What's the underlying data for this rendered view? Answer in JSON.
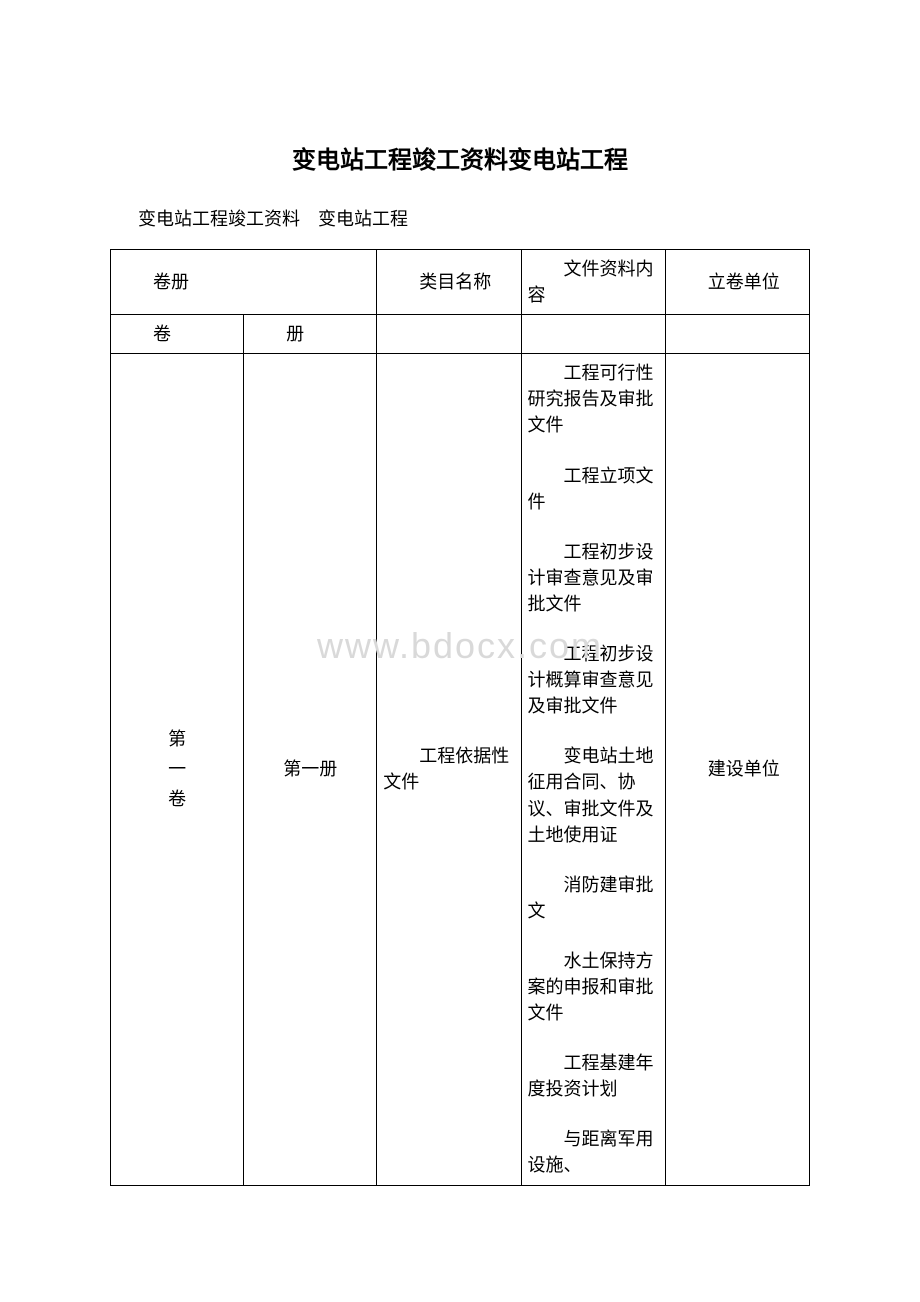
{
  "title": "变电站工程竣工资料变电站工程",
  "subtitle": "变电站工程竣工资料　变电站工程",
  "watermark": "www.bdocx.com",
  "headers": {
    "volume_series": "卷册",
    "category": "类目名称",
    "content": "文件资料内容",
    "unit": "立卷单位",
    "volume": "卷",
    "series": "册"
  },
  "row": {
    "volume": "第\n一\n卷",
    "series": "第一册",
    "category": "工程依据性文件",
    "unit": "建设单位",
    "items": [
      "工程可行性研究报告及审批文件",
      "工程立项文件",
      "工程初步设计审查意见及审批文件",
      "工程初步设计概算审查意见及审批文件",
      "变电站土地征用合同、协议、审批文件及土地使用证",
      "消防建审批文",
      "水土保持方案的申报和审批文件",
      "工程基建年度投资计划",
      "与距离军用设施、"
    ]
  }
}
